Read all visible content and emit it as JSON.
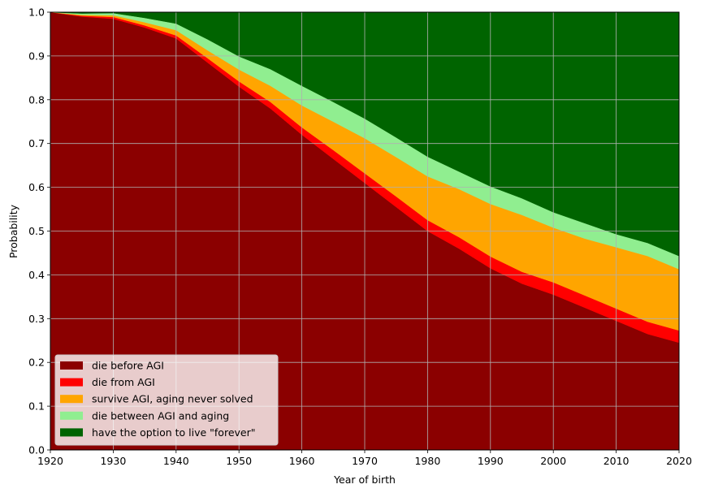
{
  "chart_data": {
    "type": "area",
    "stacked": true,
    "title": "",
    "xlabel": "Year of birth",
    "ylabel": "Probability",
    "xlim": [
      1920,
      2020
    ],
    "ylim": [
      0,
      1
    ],
    "grid": true,
    "legend_position": "lower-left",
    "xticks": [
      1920,
      1930,
      1940,
      1950,
      1960,
      1970,
      1980,
      1990,
      2000,
      2010,
      2020
    ],
    "yticks": [
      0.0,
      0.1,
      0.2,
      0.3,
      0.4,
      0.5,
      0.6,
      0.7,
      0.8,
      0.9,
      1.0
    ],
    "xtick_labels": [
      "1920",
      "1930",
      "1940",
      "1950",
      "1960",
      "1970",
      "1980",
      "1990",
      "2000",
      "2010",
      "2020"
    ],
    "ytick_labels": [
      "0.0",
      "0.1",
      "0.2",
      "0.3",
      "0.4",
      "0.5",
      "0.6",
      "0.7",
      "0.8",
      "0.9",
      "1.0"
    ],
    "x": [
      1920,
      1925,
      1930,
      1935,
      1940,
      1945,
      1950,
      1955,
      1960,
      1965,
      1970,
      1975,
      1980,
      1985,
      1990,
      1995,
      2000,
      2005,
      2010,
      2015,
      2020
    ],
    "series": [
      {
        "name": "die before AGI",
        "color": "#8b0000",
        "values": [
          1.0,
          0.99,
          0.985,
          0.965,
          0.94,
          0.885,
          0.83,
          0.78,
          0.72,
          0.665,
          0.61,
          0.555,
          0.5,
          0.46,
          0.415,
          0.38,
          0.355,
          0.325,
          0.295,
          0.265,
          0.245
        ]
      },
      {
        "name": "die from AGI",
        "color": "#ff0000",
        "values": [
          0.0,
          0.002,
          0.004,
          0.005,
          0.007,
          0.01,
          0.012,
          0.015,
          0.017,
          0.02,
          0.022,
          0.024,
          0.025,
          0.026,
          0.027,
          0.027,
          0.028,
          0.028,
          0.028,
          0.028,
          0.028
        ]
      },
      {
        "name": "survive AGI, aging never solved",
        "color": "#ffa500",
        "values": [
          0.0,
          0.002,
          0.004,
          0.007,
          0.012,
          0.018,
          0.027,
          0.037,
          0.05,
          0.065,
          0.08,
          0.09,
          0.1,
          0.11,
          0.12,
          0.13,
          0.125,
          0.13,
          0.14,
          0.15,
          0.14
        ]
      },
      {
        "name": "die between AGI and aging",
        "color": "#90ee90",
        "values": [
          0.0,
          0.003,
          0.005,
          0.01,
          0.015,
          0.025,
          0.03,
          0.038,
          0.045,
          0.045,
          0.045,
          0.045,
          0.045,
          0.04,
          0.04,
          0.038,
          0.035,
          0.035,
          0.03,
          0.03,
          0.03
        ]
      },
      {
        "name": "have the option to live \"forever\"",
        "color": "#006400",
        "values": [
          0.0,
          0.003,
          0.002,
          0.013,
          0.026,
          0.062,
          0.101,
          0.13,
          0.168,
          0.205,
          0.243,
          0.286,
          0.33,
          0.364,
          0.398,
          0.425,
          0.457,
          0.482,
          0.507,
          0.527,
          0.557
        ]
      }
    ]
  }
}
